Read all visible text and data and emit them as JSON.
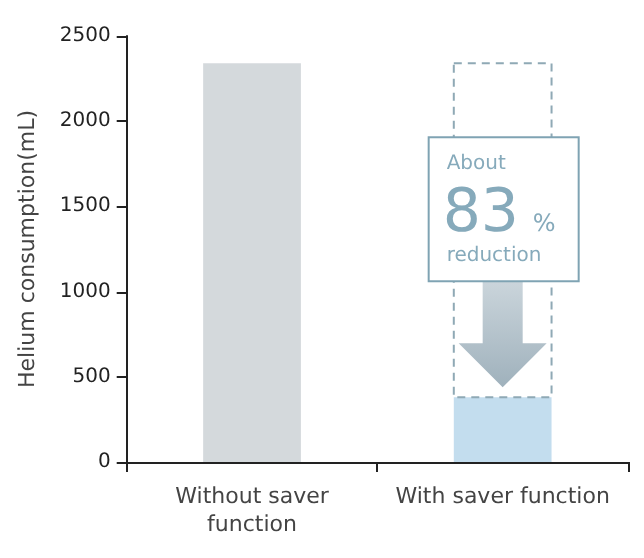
{
  "chart_data": {
    "type": "bar",
    "categories": [
      "Without saver\nfunction",
      "With saver function"
    ],
    "values": [
      2340,
      380
    ],
    "colors": [
      "#d4d9dc",
      "#c3ddee"
    ],
    "ylabel": "Helium consumption(mL)",
    "ylim": [
      0,
      2500
    ],
    "yticks": [
      0,
      500,
      1000,
      1500,
      2000,
      2500
    ],
    "grid": false,
    "annotations": [
      "About",
      "83",
      "%",
      "reduction"
    ]
  }
}
